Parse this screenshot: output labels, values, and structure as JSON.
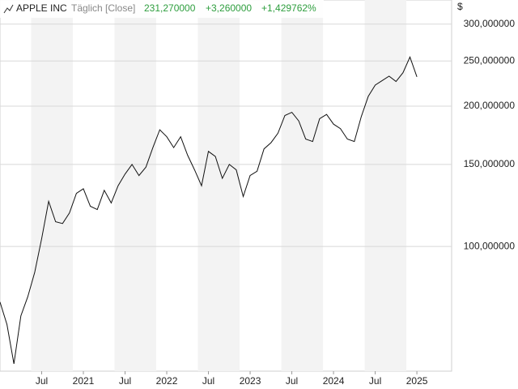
{
  "chart_data": {
    "type": "line",
    "title": "APPLE INC",
    "subtitle": "Täglich [Close]",
    "header_values": [
      "231,270000",
      "+3,260000",
      "+1,429762%"
    ],
    "header_color": "#2e9e3e",
    "y_label": "$",
    "log_scale": true,
    "grid": true,
    "color": "#111111",
    "x": [
      "2020-01",
      "2020-02",
      "2020-03",
      "2020-04",
      "2020-05",
      "2020-06",
      "2020-07",
      "2020-08",
      "2020-09",
      "2020-10",
      "2020-11",
      "2020-12",
      "2021-01",
      "2021-02",
      "2021-03",
      "2021-04",
      "2021-05",
      "2021-06",
      "2021-07",
      "2021-08",
      "2021-09",
      "2021-10",
      "2021-11",
      "2021-12",
      "2022-01",
      "2022-02",
      "2022-03",
      "2022-04",
      "2022-05",
      "2022-06",
      "2022-07",
      "2022-08",
      "2022-09",
      "2022-10",
      "2022-11",
      "2022-12",
      "2023-01",
      "2023-02",
      "2023-03",
      "2023-04",
      "2023-05",
      "2023-06",
      "2023-07",
      "2023-08",
      "2023-09",
      "2023-10",
      "2023-11",
      "2023-12",
      "2024-01",
      "2024-02",
      "2024-03",
      "2024-04",
      "2024-05",
      "2024-06",
      "2024-07",
      "2024-08",
      "2024-09",
      "2024-10",
      "2024-11",
      "2024-12",
      "2025-01"
    ],
    "values": [
      76,
      68,
      56,
      71,
      78,
      88,
      104,
      125,
      113,
      112,
      118,
      130,
      133,
      122,
      120,
      132,
      124,
      135,
      143,
      150,
      142,
      148,
      163,
      178,
      172,
      163,
      172,
      157,
      146,
      135,
      160,
      156,
      140,
      150,
      146,
      128,
      142,
      145,
      162,
      167,
      175,
      191,
      194,
      186,
      170,
      168,
      188,
      192,
      183,
      179,
      170,
      168,
      190,
      210,
      222,
      227,
      232,
      226,
      236,
      255,
      231.27
    ],
    "xlim": [
      "2020-01",
      "2025-06"
    ],
    "xticks": [
      {
        "value": "2020-07",
        "label": "Jul"
      },
      {
        "value": "2021-01",
        "label": "2021"
      },
      {
        "value": "2021-07",
        "label": "Jul"
      },
      {
        "value": "2022-01",
        "label": "2022"
      },
      {
        "value": "2022-07",
        "label": "Jul"
      },
      {
        "value": "2023-01",
        "label": "2023"
      },
      {
        "value": "2023-07",
        "label": "Jul"
      },
      {
        "value": "2024-01",
        "label": "2024"
      },
      {
        "value": "2024-07",
        "label": "Jul"
      },
      {
        "value": "2025-01",
        "label": "2025"
      }
    ],
    "ylim": [
      54,
      338
    ],
    "yticks": [
      {
        "value": 100,
        "label": "100,000000"
      },
      {
        "value": 150,
        "label": "150,000000"
      },
      {
        "value": 200,
        "label": "200,000000"
      },
      {
        "value": 250,
        "label": "250,000000"
      },
      {
        "value": 300,
        "label": "300,000000"
      }
    ]
  }
}
